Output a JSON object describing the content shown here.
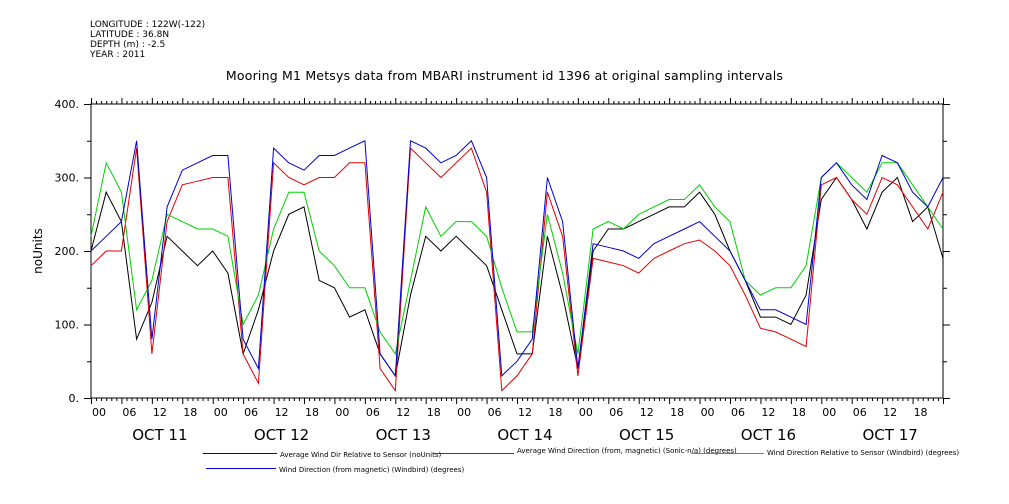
{
  "meta": {
    "longitude": "LONGITUDE : 122W(-122)",
    "latitude": "LATITUDE : 36.8N",
    "depth": "DEPTH (m) : -2.5",
    "year": "YEAR : 2011"
  },
  "chart_data": {
    "type": "line",
    "title": "Mooring M1 Metsys data from MBARI instrument id 1396 at original sampling intervals",
    "ylabel": "noUnits",
    "ylim": [
      0,
      400
    ],
    "yticks": [
      "0.",
      "100.",
      "200.",
      "300.",
      "400."
    ],
    "xlim_hours": [
      0,
      168
    ],
    "x_tick_labels": [
      "00",
      "06",
      "12",
      "18",
      "00",
      "06",
      "12",
      "18",
      "00",
      "06",
      "12",
      "18",
      "00",
      "06",
      "12",
      "18",
      "00",
      "06",
      "12",
      "18",
      "00",
      "06",
      "12",
      "18",
      "00",
      "06",
      "12",
      "18"
    ],
    "day_labels": [
      "OCT 11",
      "OCT 12",
      "OCT 13",
      "OCT 14",
      "OCT 15",
      "OCT 16",
      "OCT 17"
    ],
    "grid": false,
    "legend_position": "bottom",
    "colors": {
      "black": "#000000",
      "red": "#e00000",
      "green": "#00d000",
      "blue": "#0000d0"
    },
    "series": [
      {
        "name": "Average Wind Dir Relative to Sensor (noUnits)",
        "color": "#000000",
        "x": [
          0,
          3,
          6,
          9,
          12,
          15,
          18,
          21,
          24,
          27,
          30,
          33,
          36,
          39,
          42,
          45,
          48,
          51,
          54,
          57,
          60,
          63,
          66,
          69,
          72,
          75,
          78,
          81,
          84,
          87,
          90,
          93,
          96,
          99,
          102,
          105,
          108,
          111,
          114,
          117,
          120,
          123,
          126,
          129,
          132,
          135,
          138,
          141,
          144,
          147,
          150,
          153,
          156,
          159,
          162,
          165,
          168
        ],
        "values": [
          200,
          280,
          240,
          80,
          130,
          220,
          200,
          180,
          200,
          170,
          60,
          120,
          200,
          250,
          260,
          160,
          150,
          110,
          120,
          60,
          30,
          140,
          220,
          200,
          220,
          200,
          180,
          120,
          60,
          60,
          220,
          140,
          40,
          200,
          230,
          230,
          240,
          250,
          260,
          260,
          280,
          250,
          200,
          160,
          110,
          110,
          100,
          140,
          270,
          300,
          270,
          230,
          280,
          300,
          240,
          260,
          190
        ]
      },
      {
        "name": "Average Wind Direction (from, magnetic) (Sonic-n/a) (degrees)",
        "color": "#e00000",
        "x": [
          0,
          3,
          6,
          9,
          12,
          15,
          18,
          21,
          24,
          27,
          30,
          33,
          36,
          39,
          42,
          45,
          48,
          51,
          54,
          57,
          60,
          63,
          66,
          69,
          72,
          75,
          78,
          81,
          84,
          87,
          90,
          93,
          96,
          99,
          102,
          105,
          108,
          111,
          114,
          117,
          120,
          123,
          126,
          129,
          132,
          135,
          138,
          141,
          144,
          147,
          150,
          153,
          156,
          159,
          162,
          165,
          168
        ],
        "values": [
          180,
          200,
          200,
          340,
          60,
          240,
          290,
          295,
          300,
          300,
          60,
          20,
          320,
          300,
          290,
          300,
          300,
          320,
          320,
          40,
          10,
          340,
          320,
          300,
          320,
          340,
          280,
          10,
          30,
          60,
          280,
          220,
          30,
          190,
          185,
          180,
          170,
          190,
          200,
          210,
          215,
          200,
          180,
          140,
          95,
          90,
          80,
          70,
          290,
          300,
          270,
          250,
          300,
          290,
          260,
          230,
          280
        ]
      },
      {
        "name": "Wind Direction Relative to Sensor (Windbird) (degrees)",
        "color": "#00d000",
        "x": [
          0,
          3,
          6,
          9,
          12,
          15,
          18,
          21,
          24,
          27,
          30,
          33,
          36,
          39,
          42,
          45,
          48,
          51,
          54,
          57,
          60,
          63,
          66,
          69,
          72,
          75,
          78,
          81,
          84,
          87,
          90,
          93,
          96,
          99,
          102,
          105,
          108,
          111,
          114,
          117,
          120,
          123,
          126,
          129,
          132,
          135,
          138,
          141,
          144,
          147,
          150,
          153,
          156,
          159,
          162,
          165,
          168
        ],
        "values": [
          220,
          320,
          280,
          120,
          160,
          250,
          240,
          230,
          230,
          220,
          100,
          140,
          230,
          280,
          280,
          200,
          180,
          150,
          150,
          90,
          60,
          160,
          260,
          220,
          240,
          240,
          220,
          150,
          90,
          90,
          250,
          170,
          60,
          230,
          240,
          230,
          250,
          260,
          270,
          270,
          290,
          260,
          240,
          160,
          140,
          150,
          150,
          180,
          300,
          320,
          300,
          280,
          320,
          320,
          290,
          260,
          230
        ]
      },
      {
        "name": "Wind Direction (from magnetic) (Windbird) (degrees)",
        "color": "#0000d0",
        "x": [
          0,
          3,
          6,
          9,
          12,
          15,
          18,
          21,
          24,
          27,
          30,
          33,
          36,
          39,
          42,
          45,
          48,
          51,
          54,
          57,
          60,
          63,
          66,
          69,
          72,
          75,
          78,
          81,
          84,
          87,
          90,
          93,
          96,
          99,
          102,
          105,
          108,
          111,
          114,
          117,
          120,
          123,
          126,
          129,
          132,
          135,
          138,
          141,
          144,
          147,
          150,
          153,
          156,
          159,
          162,
          165,
          168
        ],
        "values": [
          200,
          220,
          240,
          350,
          80,
          260,
          310,
          320,
          330,
          330,
          80,
          40,
          340,
          320,
          310,
          330,
          330,
          340,
          350,
          60,
          30,
          350,
          340,
          320,
          330,
          350,
          300,
          30,
          50,
          80,
          300,
          240,
          40,
          210,
          205,
          200,
          190,
          210,
          220,
          230,
          240,
          220,
          200,
          160,
          120,
          120,
          110,
          100,
          300,
          320,
          290,
          270,
          330,
          320,
          280,
          260,
          300
        ]
      }
    ]
  }
}
